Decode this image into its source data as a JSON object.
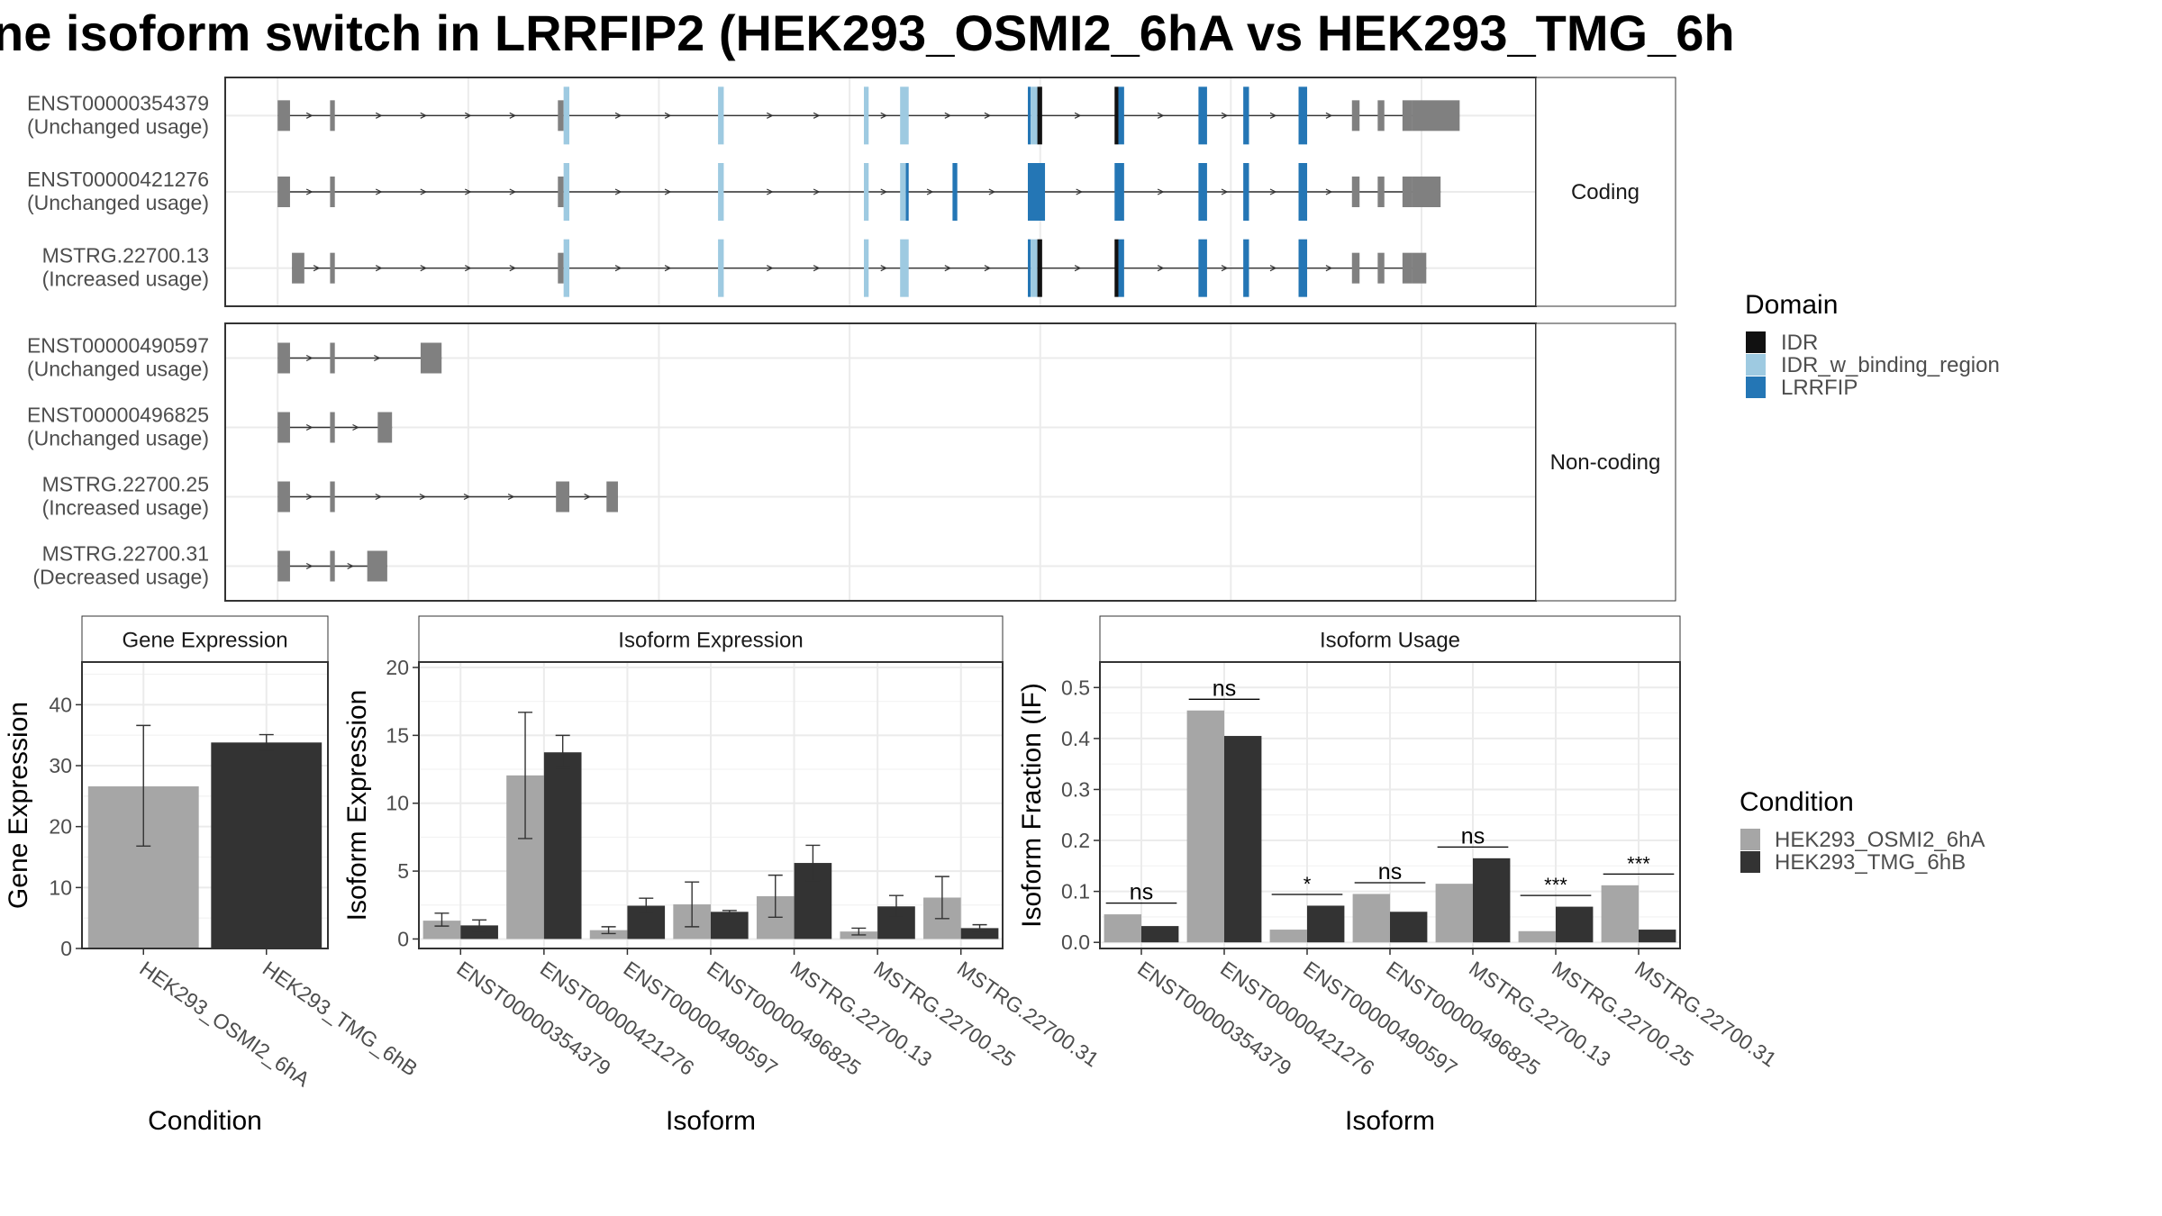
{
  "title": "ne isoform switch in LRRFIP2 (HEK293_OSMI2_6hA vs HEK293_TMG_6h",
  "colors": {
    "IDR": "#111111",
    "IDR_w_binding_region": "#9ecae1",
    "LRRFIP": "#2476b5",
    "exon": "#808080",
    "HEK293_OSMI2_6hA": "#a6a6a6",
    "HEK293_TMG_6hB": "#333333"
  },
  "chart_data": [
    {
      "type": "gene-structure",
      "facets": [
        {
          "label": "Coding",
          "isoforms": [
            {
              "id": "ENST00000354379",
              "usage": "(Unchanged usage)",
              "start": 0.0,
              "end": 1.23,
              "exons": [
                [
                  0.0,
                  0.013,
                  "exon"
                ],
                [
                  0.055,
                  0.06,
                  "exon"
                ],
                [
                  0.294,
                  0.3,
                  "exon"
                ],
                [
                  0.3,
                  0.306,
                  "IDR_w_binding_region"
                ],
                [
                  0.462,
                  0.468,
                  "IDR_w_binding_region"
                ],
                [
                  0.615,
                  0.62,
                  "IDR_w_binding_region"
                ],
                [
                  0.653,
                  0.662,
                  "IDR_w_binding_region"
                ],
                [
                  0.787,
                  0.79,
                  "LRRFIP"
                ],
                [
                  0.79,
                  0.797,
                  "IDR_w_binding_region"
                ],
                [
                  0.797,
                  0.802,
                  "IDR"
                ],
                [
                  0.878,
                  0.882,
                  "IDR"
                ],
                [
                  0.882,
                  0.888,
                  "LRRFIP"
                ],
                [
                  0.966,
                  0.975,
                  "LRRFIP"
                ],
                [
                  1.013,
                  1.019,
                  "LRRFIP"
                ],
                [
                  1.071,
                  1.08,
                  "LRRFIP"
                ],
                [
                  1.127,
                  1.135,
                  "exon"
                ],
                [
                  1.154,
                  1.161,
                  "exon"
                ],
                [
                  1.18,
                  1.19,
                  "exon"
                ],
                [
                  1.19,
                  1.24,
                  "exon"
                ]
              ]
            },
            {
              "id": "ENST00000421276",
              "usage": "(Unchanged usage)",
              "start": 0.0,
              "end": 1.22,
              "exons": [
                [
                  0.0,
                  0.013,
                  "exon"
                ],
                [
                  0.055,
                  0.06,
                  "exon"
                ],
                [
                  0.294,
                  0.3,
                  "exon"
                ],
                [
                  0.3,
                  0.306,
                  "IDR_w_binding_region"
                ],
                [
                  0.462,
                  0.468,
                  "IDR_w_binding_region"
                ],
                [
                  0.615,
                  0.62,
                  "IDR_w_binding_region"
                ],
                [
                  0.653,
                  0.659,
                  "IDR_w_binding_region"
                ],
                [
                  0.659,
                  0.662,
                  "LRRFIP"
                ],
                [
                  0.708,
                  0.713,
                  "LRRFIP"
                ],
                [
                  0.787,
                  0.805,
                  "LRRFIP"
                ],
                [
                  0.878,
                  0.888,
                  "LRRFIP"
                ],
                [
                  0.966,
                  0.975,
                  "LRRFIP"
                ],
                [
                  1.013,
                  1.019,
                  "LRRFIP"
                ],
                [
                  1.071,
                  1.08,
                  "LRRFIP"
                ],
                [
                  1.127,
                  1.135,
                  "exon"
                ],
                [
                  1.154,
                  1.161,
                  "exon"
                ],
                [
                  1.18,
                  1.19,
                  "exon"
                ],
                [
                  1.19,
                  1.22,
                  "exon"
                ]
              ]
            },
            {
              "id": "MSTRG.22700.13",
              "usage": "(Increased usage)",
              "start": 0.015,
              "end": 1.205,
              "exons": [
                [
                  0.015,
                  0.028,
                  "exon"
                ],
                [
                  0.055,
                  0.06,
                  "exon"
                ],
                [
                  0.294,
                  0.3,
                  "exon"
                ],
                [
                  0.3,
                  0.306,
                  "IDR_w_binding_region"
                ],
                [
                  0.462,
                  0.468,
                  "IDR_w_binding_region"
                ],
                [
                  0.615,
                  0.62,
                  "IDR_w_binding_region"
                ],
                [
                  0.653,
                  0.662,
                  "IDR_w_binding_region"
                ],
                [
                  0.787,
                  0.79,
                  "LRRFIP"
                ],
                [
                  0.79,
                  0.797,
                  "IDR_w_binding_region"
                ],
                [
                  0.797,
                  0.802,
                  "IDR"
                ],
                [
                  0.878,
                  0.882,
                  "IDR"
                ],
                [
                  0.882,
                  0.888,
                  "LRRFIP"
                ],
                [
                  0.966,
                  0.975,
                  "LRRFIP"
                ],
                [
                  1.013,
                  1.019,
                  "LRRFIP"
                ],
                [
                  1.071,
                  1.08,
                  "LRRFIP"
                ],
                [
                  1.127,
                  1.135,
                  "exon"
                ],
                [
                  1.154,
                  1.161,
                  "exon"
                ],
                [
                  1.18,
                  1.19,
                  "exon"
                ],
                [
                  1.19,
                  1.205,
                  "exon"
                ]
              ]
            }
          ]
        },
        {
          "label": "Non-coding",
          "isoforms": [
            {
              "id": "ENST00000490597",
              "usage": "(Unchanged usage)",
              "start": 0.0,
              "end": 0.172,
              "exons": [
                [
                  0.0,
                  0.013,
                  "exon"
                ],
                [
                  0.055,
                  0.06,
                  "exon"
                ],
                [
                  0.15,
                  0.172,
                  "exon"
                ]
              ]
            },
            {
              "id": "ENST00000496825",
              "usage": "(Unchanged usage)",
              "start": 0.0,
              "end": 0.12,
              "exons": [
                [
                  0.0,
                  0.013,
                  "exon"
                ],
                [
                  0.055,
                  0.06,
                  "exon"
                ],
                [
                  0.105,
                  0.12,
                  "exon"
                ]
              ]
            },
            {
              "id": "MSTRG.22700.25",
              "usage": "(Increased usage)",
              "start": 0.0,
              "end": 0.357,
              "exons": [
                [
                  0.0,
                  0.013,
                  "exon"
                ],
                [
                  0.055,
                  0.06,
                  "exon"
                ],
                [
                  0.292,
                  0.306,
                  "exon"
                ],
                [
                  0.345,
                  0.357,
                  "exon"
                ]
              ]
            },
            {
              "id": "MSTRG.22700.31",
              "usage": "(Decreased usage)",
              "start": 0.0,
              "end": 0.115,
              "exons": [
                [
                  0.0,
                  0.013,
                  "exon"
                ],
                [
                  0.055,
                  0.06,
                  "exon"
                ],
                [
                  0.094,
                  0.115,
                  "exon"
                ]
              ]
            }
          ]
        }
      ]
    },
    {
      "type": "bar",
      "title": "Gene Expression",
      "xlabel": "Condition",
      "ylabel": "Gene Expression",
      "ylim": [
        0,
        47
      ],
      "yticks": [
        0,
        10,
        20,
        30,
        40
      ],
      "categories": [
        "HEK293_OSMI2_6hA",
        "HEK293_TMG_6hB"
      ],
      "values": [
        26.6,
        33.8
      ],
      "errors": [
        [
          16.8,
          36.6
        ],
        [
          32.5,
          35.1
        ]
      ]
    },
    {
      "type": "bar",
      "title": "Isoform Expression",
      "xlabel": "Isoform",
      "ylabel": "Isoform Expression",
      "ylim": [
        -0.7,
        20.4
      ],
      "yticks": [
        0,
        5,
        10,
        15,
        20
      ],
      "categories": [
        "ENST00000354379",
        "ENST00000421276",
        "ENST00000490597",
        "ENST00000496825",
        "MSTRG.22700.13",
        "MSTRG.22700.25",
        "MSTRG.22700.31"
      ],
      "series": [
        {
          "name": "HEK293_OSMI2_6hA",
          "values": [
            1.35,
            12.05,
            0.65,
            2.55,
            3.15,
            0.55,
            3.05
          ],
          "errors": [
            [
              0.95,
              1.9
            ],
            [
              7.4,
              16.7
            ],
            [
              0.4,
              0.9
            ],
            [
              0.9,
              4.2
            ],
            [
              1.6,
              4.7
            ],
            [
              0.3,
              0.8
            ],
            [
              1.5,
              4.6
            ]
          ]
        },
        {
          "name": "HEK293_TMG_6hB",
          "values": [
            1.0,
            13.75,
            2.45,
            2.0,
            5.6,
            2.4,
            0.8
          ],
          "errors": [
            [
              0.6,
              1.4
            ],
            [
              12.6,
              15.0
            ],
            [
              1.9,
              3.0
            ],
            [
              1.8,
              2.1
            ],
            [
              4.3,
              6.9
            ],
            [
              1.6,
              3.2
            ],
            [
              0.55,
              1.05
            ]
          ]
        }
      ]
    },
    {
      "type": "bar",
      "title": "Isoform Usage",
      "xlabel": "Isoform",
      "ylabel": "Isoform Fraction (IF)",
      "ylim": [
        -0.012,
        0.55
      ],
      "yticks": [
        0.0,
        0.1,
        0.2,
        0.3,
        0.4,
        0.5
      ],
      "ytick_labels": [
        "0.0",
        "0.1",
        "0.2",
        "0.3",
        "0.4",
        "0.5"
      ],
      "categories": [
        "ENST00000354379",
        "ENST00000421276",
        "ENST00000490597",
        "ENST00000496825",
        "MSTRG.22700.13",
        "MSTRG.22700.25",
        "MSTRG.22700.31"
      ],
      "series": [
        {
          "name": "HEK293_OSMI2_6hA",
          "values": [
            0.055,
            0.455,
            0.025,
            0.095,
            0.115,
            0.022,
            0.112
          ]
        },
        {
          "name": "HEK293_TMG_6hB",
          "values": [
            0.032,
            0.405,
            0.072,
            0.06,
            0.165,
            0.07,
            0.025
          ]
        }
      ],
      "significance": [
        "ns",
        "ns",
        "*",
        "ns",
        "ns",
        "***",
        "***"
      ],
      "significance_y": [
        0.077,
        0.477,
        0.094,
        0.117,
        0.187,
        0.092,
        0.134
      ]
    }
  ],
  "legends": {
    "domain": {
      "title": "Domain",
      "items": [
        "IDR",
        "IDR_w_binding_region",
        "LRRFIP"
      ]
    },
    "condition": {
      "title": "Condition",
      "items": [
        "HEK293_OSMI2_6hA",
        "HEK293_TMG_6hB"
      ]
    }
  }
}
